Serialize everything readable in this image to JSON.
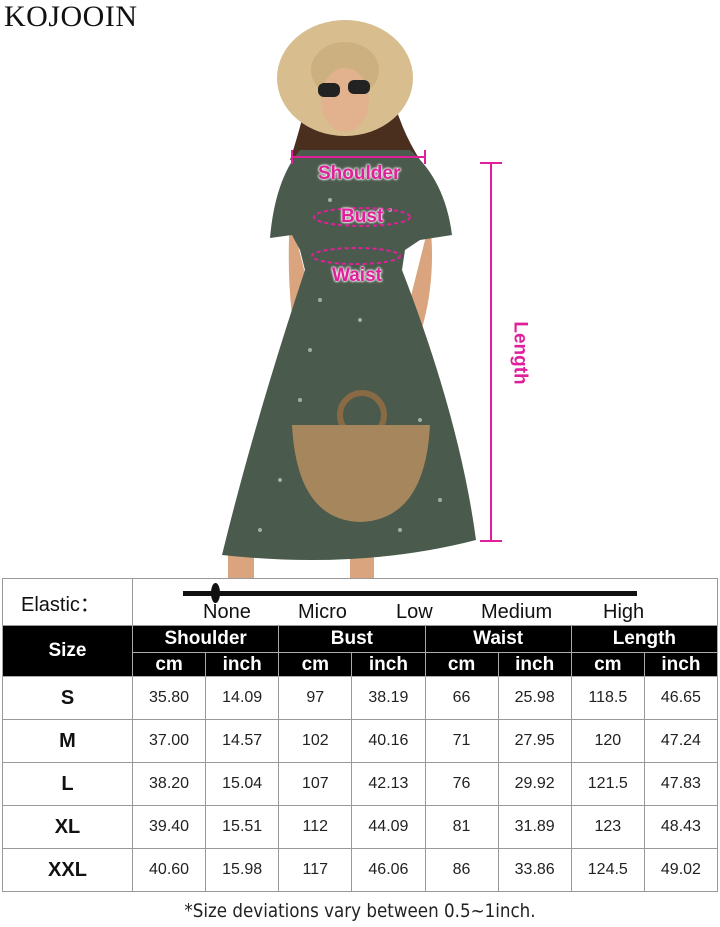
{
  "brand": "KOJOOIN",
  "measure_labels": {
    "shoulder": "Shoulder",
    "bust": "Bust",
    "waist": "Waist",
    "length": "Length"
  },
  "colors": {
    "measure_accent": "#e0209a",
    "header_bg": "#000000",
    "dress": "#4a5a4c"
  },
  "elastic": {
    "label": "Elastic：",
    "levels": [
      "None",
      "Micro",
      "Low",
      "Medium",
      "High"
    ],
    "selected": "None"
  },
  "table": {
    "size_header": "Size",
    "groups": [
      "Shoulder",
      "Bust",
      "Waist",
      "Length"
    ],
    "units": [
      "cm",
      "inch",
      "cm",
      "inch",
      "cm",
      "inch",
      "cm",
      "inch"
    ],
    "rows": [
      {
        "size": "S",
        "values": [
          "35.80",
          "14.09",
          "97",
          "38.19",
          "66",
          "25.98",
          "118.5",
          "46.65"
        ]
      },
      {
        "size": "M",
        "values": [
          "37.00",
          "14.57",
          "102",
          "40.16",
          "71",
          "27.95",
          "120",
          "47.24"
        ]
      },
      {
        "size": "L",
        "values": [
          "38.20",
          "15.04",
          "107",
          "42.13",
          "76",
          "29.92",
          "121.5",
          "47.83"
        ]
      },
      {
        "size": "XL",
        "values": [
          "39.40",
          "15.51",
          "112",
          "44.09",
          "81",
          "31.89",
          "123",
          "48.43"
        ]
      },
      {
        "size": "XXL",
        "values": [
          "40.60",
          "15.98",
          "117",
          "46.06",
          "86",
          "33.86",
          "124.5",
          "49.02"
        ]
      }
    ]
  },
  "footnote": "*Size deviations vary between 0.5~1inch."
}
